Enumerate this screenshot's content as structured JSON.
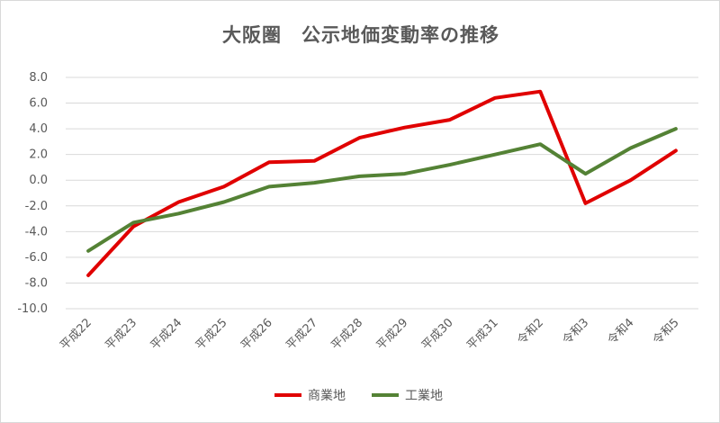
{
  "chart_data": {
    "type": "line",
    "title": "大阪圏　公示地価変動率の推移",
    "xlabel": "",
    "ylabel": "",
    "categories": [
      "平成22",
      "平成23",
      "平成24",
      "平成25",
      "平成26",
      "平成27",
      "平成28",
      "平成29",
      "平成30",
      "平成31",
      "令和2",
      "令和3",
      "令和4",
      "令和5"
    ],
    "ylim": [
      -10.0,
      8.0
    ],
    "yticks": [
      "8.0",
      "6.0",
      "4.0",
      "2.0",
      "0.0",
      "-2.0",
      "-4.0",
      "-6.0",
      "-8.0",
      "-10.0"
    ],
    "grid": true,
    "legend": "bottom",
    "series": [
      {
        "name": "商業地",
        "color": "#e00000",
        "values": [
          -7.4,
          -3.6,
          -1.7,
          -0.5,
          1.4,
          1.5,
          3.3,
          4.1,
          4.7,
          6.4,
          6.9,
          -1.8,
          0.0,
          2.3
        ]
      },
      {
        "name": "工業地",
        "color": "#548235",
        "values": [
          -5.5,
          -3.3,
          -2.6,
          -1.7,
          -0.5,
          -0.2,
          0.3,
          0.5,
          1.2,
          2.0,
          2.8,
          0.5,
          2.5,
          4.0
        ]
      }
    ]
  }
}
